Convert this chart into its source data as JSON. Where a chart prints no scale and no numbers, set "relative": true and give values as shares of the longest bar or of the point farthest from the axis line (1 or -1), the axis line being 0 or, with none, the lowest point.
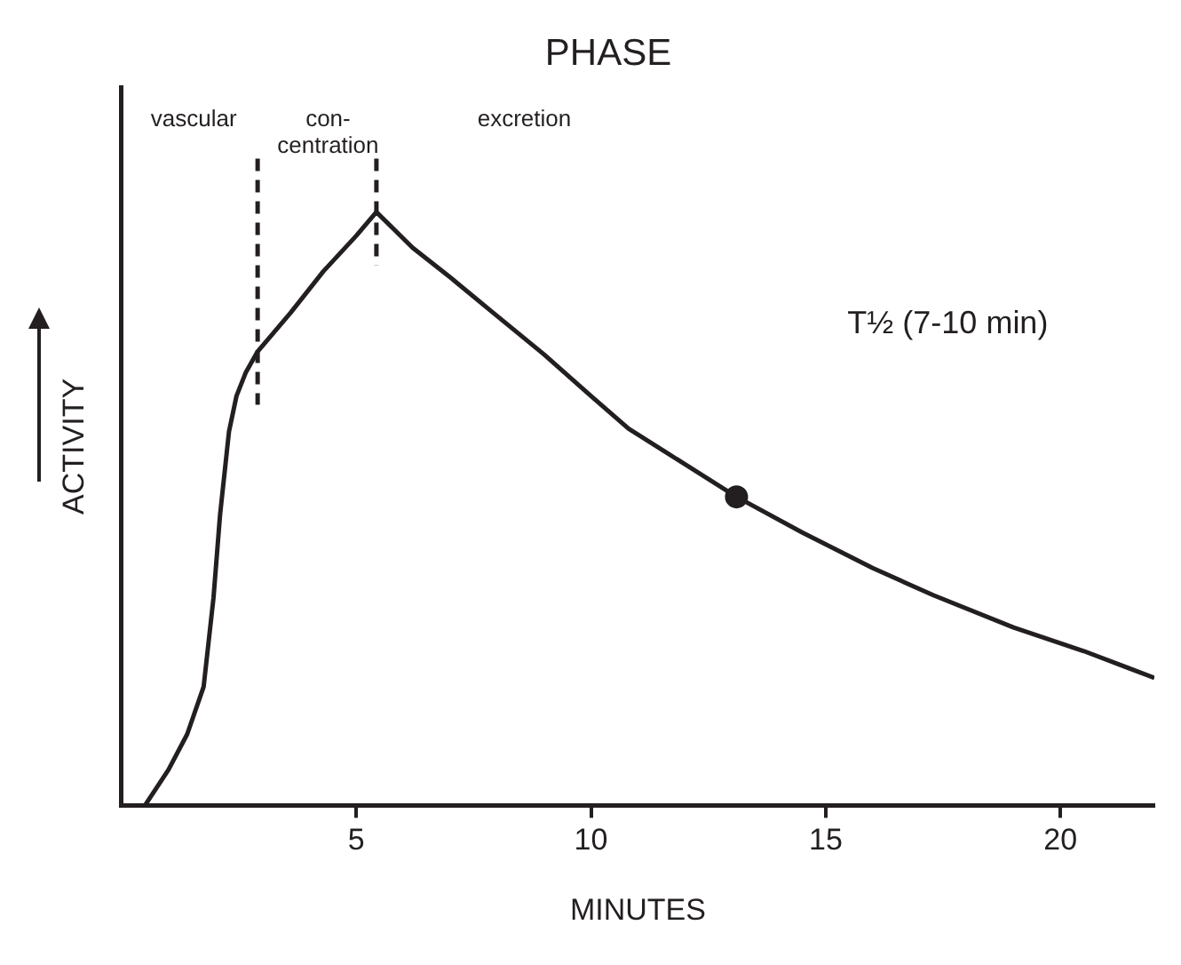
{
  "chart_data": {
    "type": "line",
    "title": "PHASE",
    "xlabel": "MINUTES",
    "ylabel": "ACTIVITY",
    "relative": true,
    "xlim": [
      0,
      22
    ],
    "xticks": [
      5,
      10,
      15,
      20
    ],
    "grid": false,
    "legend": false,
    "series": [
      {
        "color": "#231f20",
        "marker": "none",
        "line_style": "solid",
        "x": [
          0.5,
          1.0,
          1.4,
          1.75,
          1.96,
          2.1,
          2.29,
          2.45,
          2.65,
          2.9,
          3.6,
          4.3,
          5.0,
          5.43,
          6.2,
          7.0,
          7.92,
          9.0,
          10.0,
          10.8,
          12.0,
          13.1,
          14.5,
          16.0,
          17.3,
          19.0,
          20.5,
          22.0
        ],
        "values": [
          0,
          0.06,
          0.12,
          0.2,
          0.35,
          0.49,
          0.63,
          0.69,
          0.73,
          0.765,
          0.83,
          0.9,
          0.96,
          1,
          0.94,
          0.89,
          0.83,
          0.76,
          0.69,
          0.635,
          0.575,
          0.52,
          0.46,
          0.4,
          0.354,
          0.3,
          0.26,
          0.215
        ]
      },
      {
        "type": "scatter",
        "color": "#231f20",
        "marker": "circle",
        "x": [
          13.1
        ],
        "values": [
          0.52
        ]
      }
    ],
    "ref_lines": [
      {
        "axis": "x",
        "value": 2.9,
        "color": "#231f20",
        "line_style": "dashed"
      },
      {
        "axis": "x",
        "value": 5.43,
        "color": "#231f20",
        "line_style": "dashed"
      }
    ],
    "annotations": [
      "vascular",
      "con-\ncentration",
      "excretion",
      "T½ (7-10 min)"
    ]
  }
}
